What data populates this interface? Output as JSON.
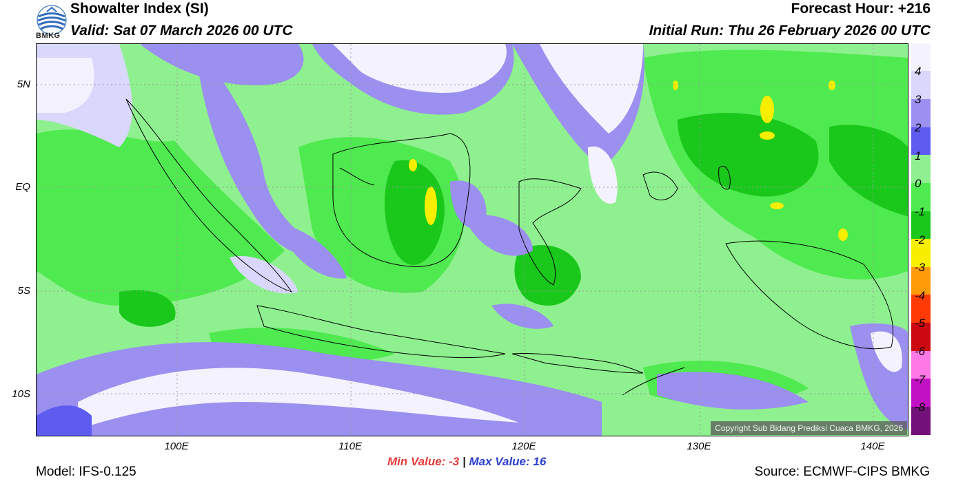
{
  "header": {
    "title": "Showalter Index (SI)",
    "valid": "Valid: Sat 07 March 2026 00 UTC",
    "forecast_hour": "Forecast Hour: +216",
    "initial_run": "Initial Run: Thu 26 February 2026 00 UTC",
    "logo_text": "BMKG"
  },
  "axes": {
    "lat_labels": [
      "5N",
      "EQ",
      "5S",
      "10S"
    ],
    "lon_labels": [
      "100E",
      "110E",
      "120E",
      "130E",
      "140E"
    ]
  },
  "legend": {
    "labels": [
      "4",
      "3",
      "2",
      "1",
      "0",
      "-1",
      "-2",
      "-3",
      "-4",
      "-5",
      "-6",
      "-7",
      "-8"
    ],
    "colors": [
      "#f4f2fe",
      "#d9d7fb",
      "#9b8ff0",
      "#5e5cf0",
      "#8ff08f",
      "#4fea4f",
      "#19c81a",
      "#f7ee00",
      "#ff9a08",
      "#ff3a05",
      "#cc0810",
      "#ff79e6",
      "#c210c4",
      "#74107a"
    ]
  },
  "footer": {
    "min_label": "Min Value:",
    "min_value": "-3",
    "separator": "|",
    "max_label": "Max Value:",
    "max_value": "16",
    "model": "Model: IFS-0.125",
    "source": "Source: ECMWF-CIPS BMKG",
    "copyright": "Copyright Sub Bidang Prediksi Cuaca BMKG, 2026"
  }
}
